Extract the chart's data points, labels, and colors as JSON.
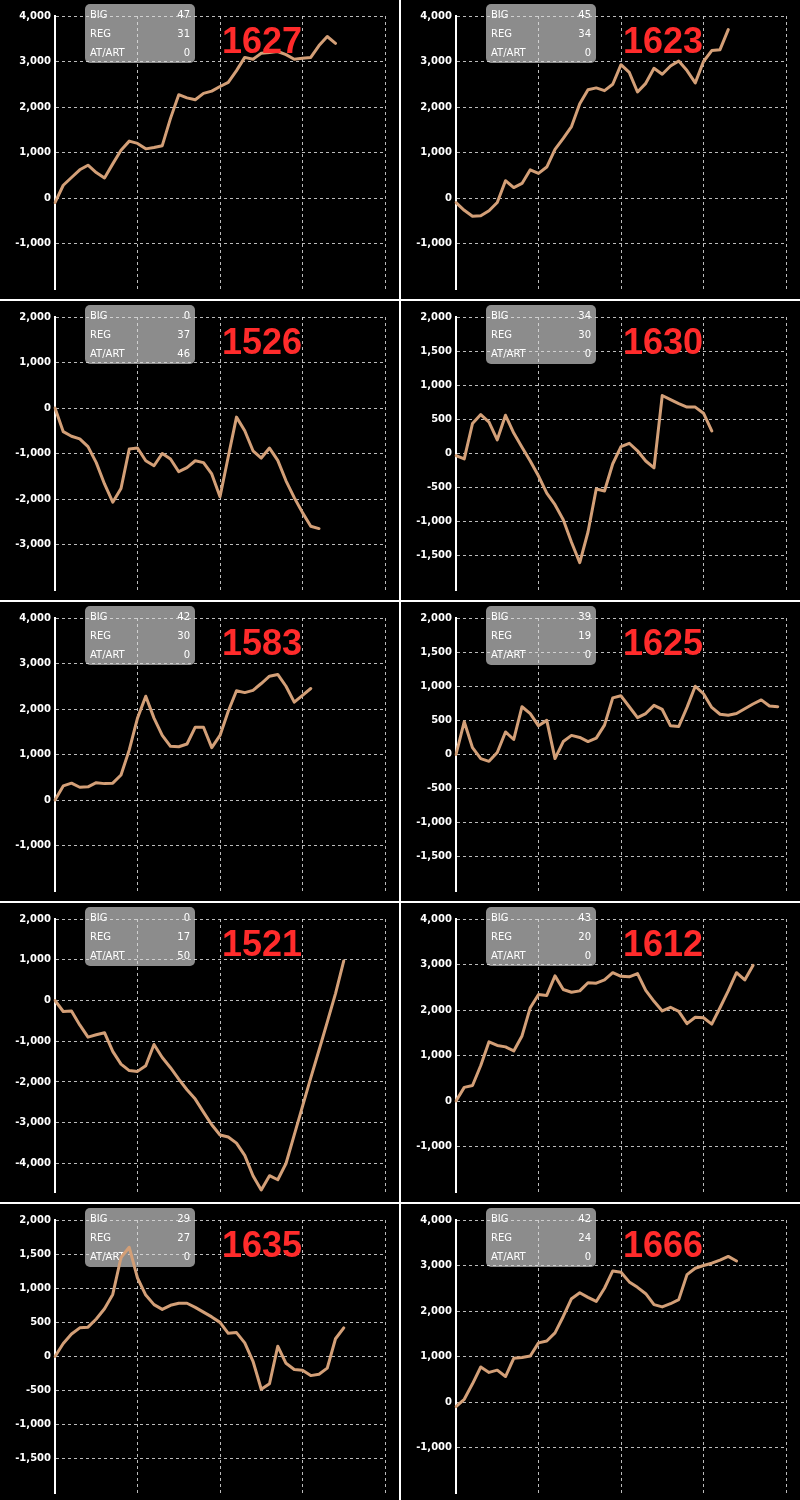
{
  "chart_data": [
    {
      "type": "line",
      "title": "1627",
      "annotations": [
        "BIG",
        "47",
        "REG",
        "31",
        "AT/ART",
        "0"
      ],
      "tick_labels": "y",
      "grid": true,
      "marker": "none",
      "ylim": [
        -2000,
        4000
      ],
      "yticks": [
        {
          "value": -1000,
          "label": "-1,000"
        },
        0,
        {
          "value": 1000,
          "label": "1,000"
        },
        {
          "value": 2000,
          "label": "2,000"
        },
        {
          "value": 3000,
          "label": "3,000"
        },
        {
          "value": 4000,
          "label": "4,000"
        }
      ],
      "categories": [
        null,
        null,
        null,
        null,
        null,
        null,
        null,
        null,
        null,
        null,
        null,
        null,
        null,
        null,
        null,
        null,
        null,
        null,
        null,
        null,
        null,
        null,
        null,
        null,
        null,
        null,
        null,
        null,
        null,
        null,
        null,
        null,
        null,
        null,
        null,
        null,
        null,
        null,
        null,
        null,
        null
      ],
      "series": [
        {
          "color": "#d39f77",
          "values": [
            -100,
            280,
            450,
            620,
            720,
            560,
            440,
            750,
            1050,
            1250,
            1200,
            1080,
            1110,
            1150,
            1750,
            2270,
            2200,
            2160,
            2300,
            2350,
            2450,
            2540,
            2800,
            3090,
            3050,
            3180,
            3200,
            3220,
            3150,
            3050,
            3070,
            3090,
            3350,
            3550,
            3400,
            null,
            null,
            null,
            null,
            null,
            null
          ]
        }
      ]
    },
    {
      "type": "line",
      "title": "1623",
      "annotations": [
        "BIG",
        "45",
        "REG",
        "34",
        "AT/ART",
        "0"
      ],
      "tick_labels": "y",
      "grid": true,
      "marker": "none",
      "ylim": [
        -2000,
        4000
      ],
      "yticks": [
        {
          "value": -1000,
          "label": "-1,000"
        },
        0,
        {
          "value": 1000,
          "label": "1,000"
        },
        {
          "value": 2000,
          "label": "2,000"
        },
        {
          "value": 3000,
          "label": "3,000"
        },
        {
          "value": 4000,
          "label": "4,000"
        }
      ],
      "categories": [
        null,
        null,
        null,
        null,
        null,
        null,
        null,
        null,
        null,
        null,
        null,
        null,
        null,
        null,
        null,
        null,
        null,
        null,
        null,
        null,
        null,
        null,
        null,
        null,
        null,
        null,
        null,
        null,
        null,
        null,
        null,
        null,
        null,
        null,
        null,
        null,
        null,
        null,
        null,
        null,
        null
      ],
      "series": [
        {
          "color": "#d39f77",
          "values": [
            -100,
            -270,
            -400,
            -390,
            -280,
            -100,
            380,
            230,
            320,
            620,
            540,
            680,
            1070,
            1310,
            1570,
            2070,
            2380,
            2420,
            2360,
            2500,
            2930,
            2760,
            2330,
            2520,
            2850,
            2720,
            2900,
            3010,
            2800,
            2530,
            3000,
            3240,
            3260,
            3700,
            null,
            null,
            null,
            null,
            null,
            null,
            null
          ]
        }
      ]
    },
    {
      "type": "line",
      "title": "1526",
      "annotations": [
        "BIG",
        "0",
        "REG",
        "37",
        "AT/ART",
        "46"
      ],
      "tick_labels": "y",
      "grid": true,
      "marker": "none",
      "ylim": [
        -4000,
        2000
      ],
      "yticks": [
        {
          "value": -3000,
          "label": "-3,000"
        },
        {
          "value": -2000,
          "label": "-2,000"
        },
        {
          "value": -1000,
          "label": "-1,000"
        },
        0,
        {
          "value": 1000,
          "label": "1,000"
        },
        {
          "value": 2000,
          "label": "2,000"
        }
      ],
      "categories": [
        null,
        null,
        null,
        null,
        null,
        null,
        null,
        null,
        null,
        null,
        null,
        null,
        null,
        null,
        null,
        null,
        null,
        null,
        null,
        null,
        null,
        null,
        null,
        null,
        null,
        null,
        null,
        null,
        null,
        null,
        null,
        null,
        null,
        null,
        null,
        null,
        null,
        null,
        null,
        null,
        null
      ],
      "series": [
        {
          "color": "#d39f77",
          "values": [
            0,
            -520,
            -620,
            -680,
            -850,
            -1200,
            -1670,
            -2070,
            -1770,
            -900,
            -880,
            -1160,
            -1270,
            -1000,
            -1120,
            -1400,
            -1310,
            -1160,
            -1200,
            -1450,
            -1950,
            -1070,
            -200,
            -500,
            -940,
            -1100,
            -880,
            -1150,
            -1600,
            -1970,
            -2300,
            -2600,
            -2650,
            null,
            null,
            null,
            null,
            null,
            null,
            null,
            null
          ]
        }
      ]
    },
    {
      "type": "line",
      "title": "1630",
      "annotations": [
        "BIG",
        "34",
        "REG",
        "30",
        "AT/ART",
        "0"
      ],
      "tick_labels": "y",
      "grid": true,
      "marker": "none",
      "ylim": [
        -2000,
        2000
      ],
      "yticks": [
        {
          "value": -1500,
          "label": "-1,500"
        },
        {
          "value": -1000,
          "label": "-1,000"
        },
        -500,
        0,
        500,
        {
          "value": 1000,
          "label": "1,000"
        },
        {
          "value": 1500,
          "label": "1,500"
        },
        {
          "value": 2000,
          "label": "2,000"
        }
      ],
      "categories": [
        null,
        null,
        null,
        null,
        null,
        null,
        null,
        null,
        null,
        null,
        null,
        null,
        null,
        null,
        null,
        null,
        null,
        null,
        null,
        null,
        null,
        null,
        null,
        null,
        null,
        null,
        null,
        null,
        null,
        null,
        null,
        null,
        null,
        null,
        null,
        null,
        null,
        null,
        null,
        null,
        null
      ],
      "series": [
        {
          "color": "#d39f77",
          "values": [
            -30,
            -80,
            440,
            570,
            460,
            200,
            560,
            300,
            90,
            -110,
            -330,
            -580,
            -750,
            -970,
            -1300,
            -1600,
            -1150,
            -520,
            -550,
            -150,
            100,
            150,
            40,
            -110,
            -210,
            850,
            790,
            730,
            680,
            680,
            590,
            330,
            null,
            null,
            null,
            null,
            null,
            null,
            null,
            null,
            null
          ]
        }
      ]
    },
    {
      "type": "line",
      "title": "1583",
      "annotations": [
        "BIG",
        "42",
        "REG",
        "30",
        "AT/ART",
        "0"
      ],
      "tick_labels": "y",
      "grid": true,
      "marker": "none",
      "ylim": [
        -2000,
        4000
      ],
      "yticks": [
        {
          "value": -1000,
          "label": "-1,000"
        },
        0,
        {
          "value": 1000,
          "label": "1,000"
        },
        {
          "value": 2000,
          "label": "2,000"
        },
        {
          "value": 3000,
          "label": "3,000"
        },
        {
          "value": 4000,
          "label": "4,000"
        }
      ],
      "categories": [
        null,
        null,
        null,
        null,
        null,
        null,
        null,
        null,
        null,
        null,
        null,
        null,
        null,
        null,
        null,
        null,
        null,
        null,
        null,
        null,
        null,
        null,
        null,
        null,
        null,
        null,
        null,
        null,
        null,
        null,
        null,
        null,
        null,
        null,
        null,
        null,
        null,
        null,
        null,
        null,
        null
      ],
      "series": [
        {
          "color": "#d39f77",
          "values": [
            0,
            310,
            370,
            280,
            290,
            380,
            360,
            370,
            550,
            1100,
            1800,
            2280,
            1800,
            1420,
            1180,
            1170,
            1230,
            1600,
            1600,
            1150,
            1420,
            1950,
            2400,
            2360,
            2410,
            2560,
            2720,
            2760,
            2500,
            2150,
            2300,
            2450,
            null,
            null,
            null,
            null,
            null,
            null,
            null,
            null,
            null
          ]
        }
      ]
    },
    {
      "type": "line",
      "title": "1625",
      "annotations": [
        "BIG",
        "39",
        "REG",
        "19",
        "AT/ART",
        "0"
      ],
      "tick_labels": "y",
      "grid": true,
      "marker": "none",
      "ylim": [
        -2000,
        2000
      ],
      "yticks": [
        {
          "value": -1500,
          "label": "-1,500"
        },
        {
          "value": -1000,
          "label": "-1,000"
        },
        -500,
        0,
        500,
        {
          "value": 1000,
          "label": "1,000"
        },
        {
          "value": 1500,
          "label": "1,500"
        },
        {
          "value": 2000,
          "label": "2,000"
        }
      ],
      "categories": [
        null,
        null,
        null,
        null,
        null,
        null,
        null,
        null,
        null,
        null,
        null,
        null,
        null,
        null,
        null,
        null,
        null,
        null,
        null,
        null,
        null,
        null,
        null,
        null,
        null,
        null,
        null,
        null,
        null,
        null,
        null,
        null,
        null,
        null,
        null,
        null,
        null,
        null,
        null,
        null,
        null
      ],
      "series": [
        {
          "color": "#d39f77",
          "values": [
            0,
            480,
            100,
            -60,
            -100,
            30,
            330,
            220,
            700,
            600,
            420,
            500,
            -60,
            190,
            280,
            250,
            190,
            240,
            430,
            830,
            860,
            700,
            540,
            600,
            720,
            660,
            420,
            410,
            690,
            1000,
            890,
            690,
            590,
            575,
            600,
            670,
            740,
            800,
            710,
            700,
            null
          ]
        }
      ]
    },
    {
      "type": "line",
      "title": "1521",
      "annotations": [
        "BIG",
        "0",
        "REG",
        "17",
        "AT/ART",
        "50"
      ],
      "tick_labels": "y",
      "grid": true,
      "marker": "none",
      "ylim": [
        -4700,
        2000
      ],
      "yticks": [
        {
          "value": -4000,
          "label": "-4,000"
        },
        {
          "value": -3000,
          "label": "-3,000"
        },
        {
          "value": -2000,
          "label": "-2,000"
        },
        {
          "value": -1000,
          "label": "-1,000"
        },
        0,
        {
          "value": 1000,
          "label": "1,000"
        },
        {
          "value": 2000,
          "label": "2,000"
        }
      ],
      "categories": [
        null,
        null,
        null,
        null,
        null,
        null,
        null,
        null,
        null,
        null,
        null,
        null,
        null,
        null,
        null,
        null,
        null,
        null,
        null,
        null,
        null,
        null,
        null,
        null,
        null,
        null,
        null,
        null,
        null,
        null,
        null,
        null,
        null,
        null,
        null,
        null,
        null,
        null,
        null,
        null,
        null
      ],
      "series": [
        {
          "color": "#d39f77",
          "values": [
            0,
            -270,
            -260,
            -600,
            -900,
            -840,
            -790,
            -1250,
            -1560,
            -1720,
            -1740,
            -1600,
            -1080,
            -1400,
            -1650,
            -1930,
            -2190,
            -2420,
            -2740,
            -3050,
            -3300,
            -3350,
            -3500,
            -3800,
            -4300,
            -4650,
            -4300,
            -4400,
            -4000,
            -3300,
            -2600,
            -1900,
            -1220,
            -530,
            170,
            970,
            null,
            null,
            null,
            null,
            null
          ]
        }
      ]
    },
    {
      "type": "line",
      "title": "1612",
      "annotations": [
        "BIG",
        "43",
        "REG",
        "20",
        "AT/ART",
        "0"
      ],
      "tick_labels": "y",
      "grid": true,
      "marker": "none",
      "ylim": [
        -2000,
        4000
      ],
      "yticks": [
        {
          "value": -1000,
          "label": "-1,000"
        },
        0,
        {
          "value": 1000,
          "label": "1,000"
        },
        {
          "value": 2000,
          "label": "2,000"
        },
        {
          "value": 3000,
          "label": "3,000"
        },
        {
          "value": 4000,
          "label": "4,000"
        }
      ],
      "categories": [
        null,
        null,
        null,
        null,
        null,
        null,
        null,
        null,
        null,
        null,
        null,
        null,
        null,
        null,
        null,
        null,
        null,
        null,
        null,
        null,
        null,
        null,
        null,
        null,
        null,
        null,
        null,
        null,
        null,
        null,
        null,
        null,
        null,
        null,
        null,
        null,
        null,
        null,
        null,
        null,
        null
      ],
      "series": [
        {
          "color": "#d39f77",
          "values": [
            0,
            300,
            340,
            780,
            1300,
            1220,
            1190,
            1100,
            1430,
            2050,
            2340,
            2320,
            2750,
            2450,
            2390,
            2420,
            2600,
            2590,
            2660,
            2820,
            2740,
            2730,
            2800,
            2430,
            2190,
            1980,
            2060,
            1970,
            1700,
            1840,
            1830,
            1690,
            2050,
            2420,
            2820,
            2660,
            2980,
            null,
            null,
            null,
            null
          ]
        }
      ]
    },
    {
      "type": "line",
      "title": "1635",
      "annotations": [
        "BIG",
        "29",
        "REG",
        "27",
        "AT/ART",
        "0"
      ],
      "tick_labels": "y",
      "grid": true,
      "marker": "none",
      "ylim": [
        -2000,
        2000
      ],
      "yticks": [
        {
          "value": -1500,
          "label": "-1,500"
        },
        {
          "value": -1000,
          "label": "-1,000"
        },
        -500,
        0,
        500,
        {
          "value": 1000,
          "label": "1,000"
        },
        {
          "value": 1500,
          "label": "1,500"
        },
        {
          "value": 2000,
          "label": "2,000"
        }
      ],
      "categories": [
        null,
        null,
        null,
        null,
        null,
        null,
        null,
        null,
        null,
        null,
        null,
        null,
        null,
        null,
        null,
        null,
        null,
        null,
        null,
        null,
        null,
        null,
        null,
        null,
        null,
        null,
        null,
        null,
        null,
        null,
        null,
        null,
        null,
        null,
        null,
        null,
        null,
        null,
        null,
        null,
        null
      ],
      "series": [
        {
          "color": "#d39f77",
          "values": [
            0,
            190,
            330,
            420,
            430,
            550,
            700,
            910,
            1450,
            1600,
            1150,
            900,
            760,
            690,
            750,
            780,
            780,
            720,
            650,
            580,
            500,
            340,
            350,
            200,
            -70,
            -480,
            -400,
            150,
            -100,
            -190,
            -200,
            -280,
            -260,
            -170,
            260,
            420,
            null,
            null,
            null,
            null,
            null
          ]
        }
      ]
    },
    {
      "type": "line",
      "title": "1666",
      "annotations": [
        "BIG",
        "42",
        "REG",
        "24",
        "AT/ART",
        "0"
      ],
      "tick_labels": "y",
      "grid": true,
      "marker": "none",
      "ylim": [
        -2000,
        4000
      ],
      "yticks": [
        {
          "value": -1000,
          "label": "-1,000"
        },
        0,
        {
          "value": 1000,
          "label": "1,000"
        },
        {
          "value": 2000,
          "label": "2,000"
        },
        {
          "value": 3000,
          "label": "3,000"
        },
        {
          "value": 4000,
          "label": "4,000"
        }
      ],
      "categories": [
        null,
        null,
        null,
        null,
        null,
        null,
        null,
        null,
        null,
        null,
        null,
        null,
        null,
        null,
        null,
        null,
        null,
        null,
        null,
        null,
        null,
        null,
        null,
        null,
        null,
        null,
        null,
        null,
        null,
        null,
        null,
        null,
        null,
        null,
        null,
        null,
        null,
        null,
        null,
        null,
        null
      ],
      "series": [
        {
          "color": "#d39f77",
          "values": [
            -100,
            60,
            400,
            770,
            650,
            700,
            560,
            960,
            980,
            1010,
            1300,
            1340,
            1520,
            1880,
            2270,
            2400,
            2300,
            2210,
            2500,
            2880,
            2850,
            2640,
            2520,
            2380,
            2140,
            2090,
            2160,
            2250,
            2800,
            2940,
            3000,
            3050,
            3120,
            3200,
            3100,
            null,
            null,
            null,
            null,
            null,
            null
          ]
        }
      ]
    }
  ]
}
